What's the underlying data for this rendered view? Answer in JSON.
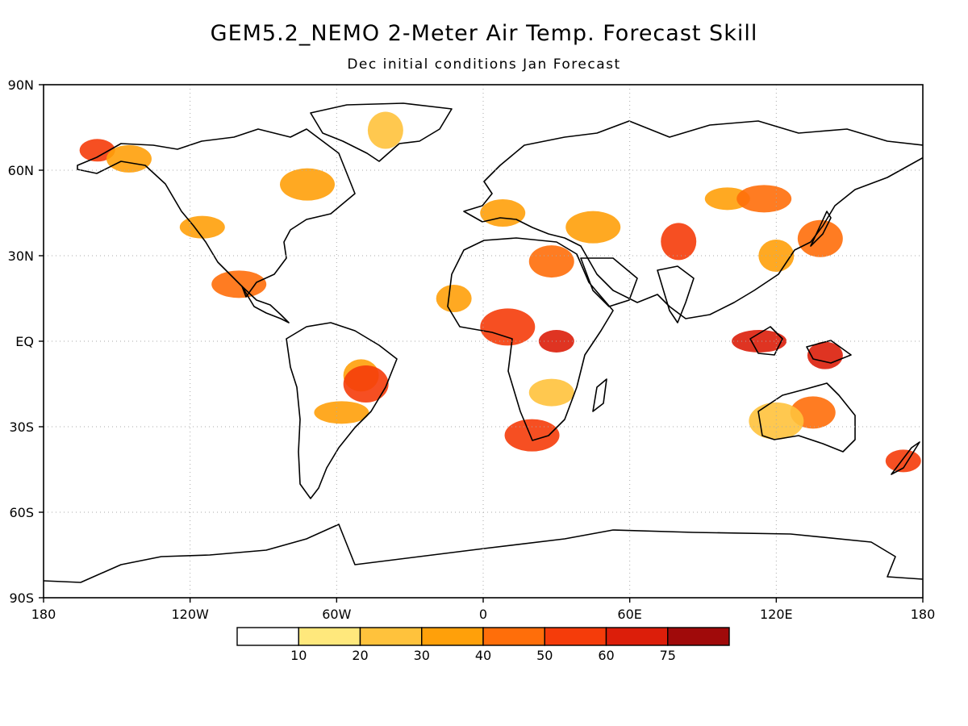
{
  "title": "GEM5.2_NEMO 2-Meter Air Temp. Forecast Skill",
  "subtitle": "Dec initial conditions  Jan Forecast",
  "map": {
    "lat_labels": [
      "90N",
      "60N",
      "30N",
      "EQ",
      "30S",
      "60S",
      "90S"
    ],
    "lat_values": [
      90,
      60,
      30,
      0,
      -30,
      -60,
      -90
    ],
    "lon_labels": [
      "180",
      "120W",
      "60W",
      "0",
      "60E",
      "120E",
      "180"
    ],
    "lon_values": [
      -180,
      -120,
      -60,
      0,
      60,
      120,
      180
    ],
    "grid": "dotted"
  },
  "colorbar": {
    "colors": [
      "#ffffff",
      "#ffe87c",
      "#ffc23c",
      "#ffa00a",
      "#ff6e0a",
      "#f53c0a",
      "#dc1e0a",
      "#a00a0a"
    ],
    "tick_labels": [
      "10",
      "20",
      "30",
      "40",
      "50",
      "60",
      "75"
    ]
  },
  "chart_data": {
    "type": "heatmap",
    "title": "GEM5.2_NEMO 2-Meter Air Temp. Forecast Skill",
    "subtitle": "Dec initial conditions  Jan Forecast",
    "xlabel": "",
    "ylabel": "",
    "xlim": [
      -180,
      180
    ],
    "ylim": [
      -90,
      90
    ],
    "levels": [
      10,
      20,
      30,
      40,
      50,
      60,
      75
    ],
    "regions": [
      {
        "lon": -158,
        "lat": 67,
        "level": 50
      },
      {
        "lon": -145,
        "lat": 64,
        "level": 30
      },
      {
        "lon": -72,
        "lat": 55,
        "level": 30
      },
      {
        "lon": -40,
        "lat": 74,
        "level": 20
      },
      {
        "lon": -115,
        "lat": 40,
        "level": 30
      },
      {
        "lon": -100,
        "lat": 20,
        "level": 40
      },
      {
        "lon": -50,
        "lat": -12,
        "level": 30
      },
      {
        "lon": -48,
        "lat": -15,
        "level": 50
      },
      {
        "lon": -58,
        "lat": -25,
        "level": 30
      },
      {
        "lon": -12,
        "lat": 15,
        "level": 30
      },
      {
        "lon": 28,
        "lat": 28,
        "level": 40
      },
      {
        "lon": 10,
        "lat": 5,
        "level": 50
      },
      {
        "lon": 30,
        "lat": 0,
        "level": 60
      },
      {
        "lon": 28,
        "lat": -18,
        "level": 20
      },
      {
        "lon": 20,
        "lat": -33,
        "level": 50
      },
      {
        "lon": 80,
        "lat": 35,
        "level": 50
      },
      {
        "lon": 100,
        "lat": 50,
        "level": 30
      },
      {
        "lon": 115,
        "lat": 50,
        "level": 40
      },
      {
        "lon": 120,
        "lat": 30,
        "level": 30
      },
      {
        "lon": 138,
        "lat": 36,
        "level": 40
      },
      {
        "lon": 113,
        "lat": 0,
        "level": 60
      },
      {
        "lon": 140,
        "lat": -5,
        "level": 60
      },
      {
        "lon": 135,
        "lat": -25,
        "level": 40
      },
      {
        "lon": 120,
        "lat": -28,
        "level": 20
      },
      {
        "lon": 172,
        "lat": -42,
        "level": 50
      },
      {
        "lon": 8,
        "lat": 45,
        "level": 30
      },
      {
        "lon": 45,
        "lat": 40,
        "level": 30
      }
    ]
  }
}
